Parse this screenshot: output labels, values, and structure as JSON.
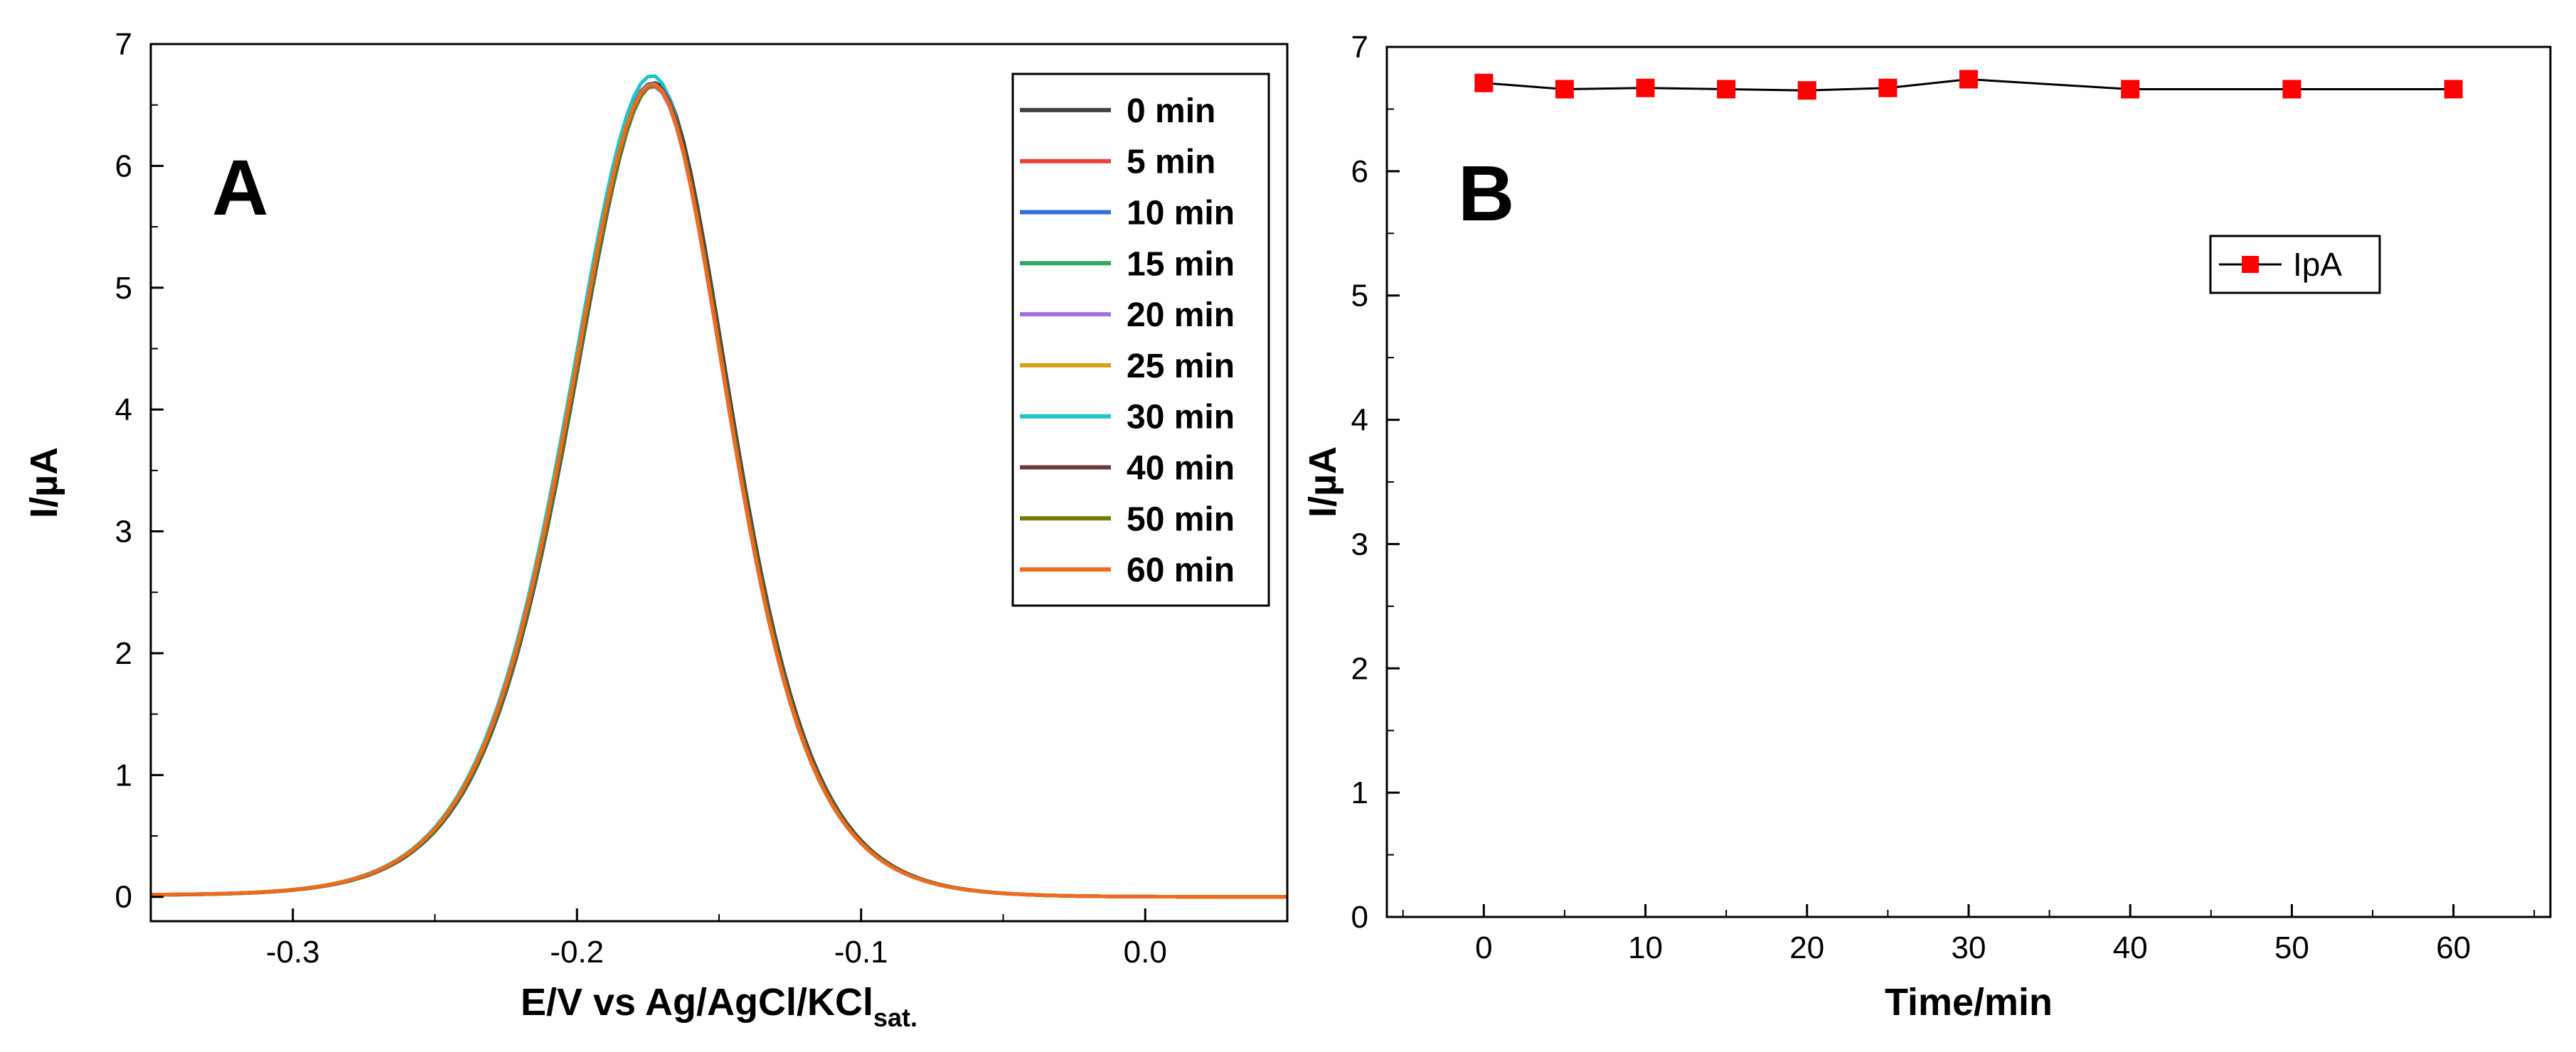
{
  "chart_data": [
    {
      "panel_label": "A",
      "type": "line",
      "title": "",
      "xlabel": "E/V vs Ag/AgCl/KCl",
      "xlabel_sub": "sat.",
      "ylabel": "I/µA",
      "xlim": [
        -0.35,
        0.05
      ],
      "ylim": [
        -0.2,
        7
      ],
      "xticks": [
        -0.3,
        -0.2,
        -0.1,
        0.0
      ],
      "xtick_labels": [
        "-0.3",
        "-0.2",
        "-0.1",
        "0.0"
      ],
      "yticks": [
        0,
        1,
        2,
        3,
        4,
        5,
        6,
        7
      ],
      "ytick_labels": [
        "0",
        "1",
        "2",
        "3",
        "4",
        "5",
        "6",
        "7"
      ],
      "grid": false,
      "legend_position": "top-right",
      "peak_x": -0.173,
      "series": [
        {
          "name": "0 min",
          "color": "#404040",
          "peak": 6.68
        },
        {
          "name": "5 min",
          "color": "#e8413a",
          "peak": 6.67
        },
        {
          "name": "10 min",
          "color": "#2f6fd8",
          "peak": 6.68
        },
        {
          "name": "15 min",
          "color": "#2fa866",
          "peak": 6.66
        },
        {
          "name": "20 min",
          "color": "#a070e0",
          "peak": 6.65
        },
        {
          "name": "25 min",
          "color": "#d4a017",
          "peak": 6.67
        },
        {
          "name": "30 min",
          "color": "#21c4c4",
          "peak": 6.74
        },
        {
          "name": "40 min",
          "color": "#6b3c3c",
          "peak": 6.67
        },
        {
          "name": "50 min",
          "color": "#7a7a00",
          "peak": 6.66
        },
        {
          "name": "60 min",
          "color": "#f26a1b",
          "peak": 6.67
        }
      ]
    },
    {
      "panel_label": "B",
      "type": "line",
      "title": "",
      "xlabel": "Time/min",
      "ylabel": "I/µA",
      "xlim": [
        -6,
        66
      ],
      "ylim": [
        0,
        7
      ],
      "xticks": [
        0,
        10,
        20,
        30,
        40,
        50,
        60
      ],
      "xtick_labels": [
        "0",
        "10",
        "20",
        "30",
        "40",
        "50",
        "60"
      ],
      "yticks": [
        0,
        1,
        2,
        3,
        4,
        5,
        6,
        7
      ],
      "ytick_labels": [
        "0",
        "1",
        "2",
        "3",
        "4",
        "5",
        "6",
        "7"
      ],
      "grid": false,
      "legend_position": "upper-right",
      "series": [
        {
          "name": "IpA",
          "color": "#ff0000",
          "line_color": "#000000",
          "marker": "square",
          "x": [
            0,
            5,
            10,
            15,
            20,
            25,
            30,
            40,
            50,
            60
          ],
          "y": [
            6.71,
            6.66,
            6.67,
            6.66,
            6.65,
            6.67,
            6.74,
            6.66,
            6.66,
            6.66
          ]
        }
      ]
    }
  ]
}
